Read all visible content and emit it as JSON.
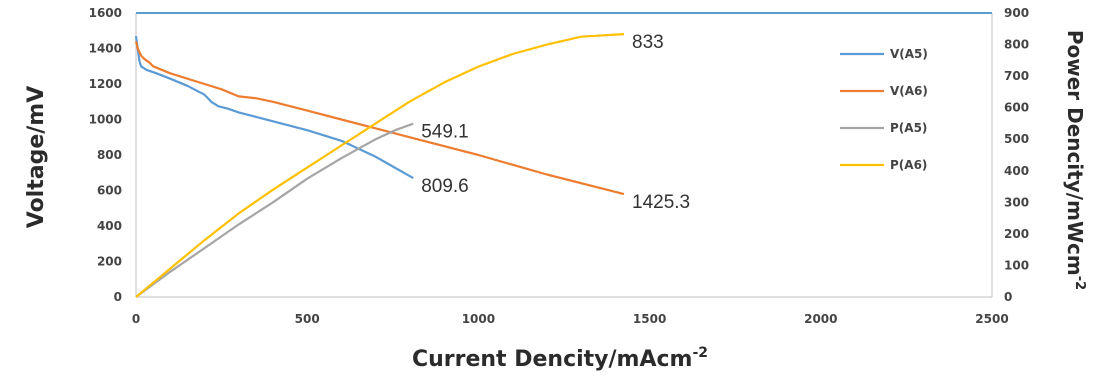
{
  "chart_data": {
    "type": "line",
    "title": "",
    "xlabel": "Current Dencity/mAcm",
    "xlabel_sup": "-2",
    "ylabel": "Voltage/mV",
    "y2label": "Power Dencity/mWcm",
    "y2label_sup": "-2",
    "xlim": [
      0,
      2500
    ],
    "ylim": [
      0,
      1600
    ],
    "y2lim": [
      0,
      900
    ],
    "x_ticks": [
      "0",
      "500",
      "1000",
      "1500",
      "2000",
      "2500"
    ],
    "y_ticks": [
      "0",
      "200",
      "400",
      "600",
      "800",
      "1000",
      "1200",
      "1400",
      "1600"
    ],
    "y2_ticks": [
      "0",
      "100",
      "200",
      "300",
      "400",
      "500",
      "600",
      "700",
      "800",
      "900"
    ],
    "grid": false,
    "legend_position": "right",
    "series": [
      {
        "name": "V(A5)",
        "axis": "left",
        "color": "#5b9bd5",
        "points": [
          [
            0,
            1470
          ],
          [
            5,
            1400
          ],
          [
            10,
            1330
          ],
          [
            15,
            1300
          ],
          [
            30,
            1280
          ],
          [
            60,
            1260
          ],
          [
            100,
            1230
          ],
          [
            150,
            1190
          ],
          [
            200,
            1140
          ],
          [
            220,
            1100
          ],
          [
            240,
            1075
          ],
          [
            270,
            1060
          ],
          [
            300,
            1040
          ],
          [
            400,
            990
          ],
          [
            500,
            940
          ],
          [
            600,
            880
          ],
          [
            700,
            790
          ],
          [
            809.6,
            670
          ]
        ]
      },
      {
        "name": "V(A6)",
        "axis": "left",
        "color": "#ed7d31",
        "points": [
          [
            0,
            1440
          ],
          [
            5,
            1400
          ],
          [
            15,
            1360
          ],
          [
            25,
            1340
          ],
          [
            40,
            1320
          ],
          [
            50,
            1300
          ],
          [
            100,
            1260
          ],
          [
            200,
            1200
          ],
          [
            250,
            1170
          ],
          [
            300,
            1130
          ],
          [
            350,
            1120
          ],
          [
            400,
            1100
          ],
          [
            500,
            1050
          ],
          [
            600,
            1000
          ],
          [
            800,
            900
          ],
          [
            1000,
            800
          ],
          [
            1200,
            690
          ],
          [
            1425.3,
            580
          ]
        ]
      },
      {
        "name": "P(A5)",
        "axis": "right",
        "color": "#a5a5a5",
        "points": [
          [
            0,
            0
          ],
          [
            50,
            40
          ],
          [
            100,
            80
          ],
          [
            200,
            155
          ],
          [
            300,
            230
          ],
          [
            400,
            300
          ],
          [
            500,
            375
          ],
          [
            600,
            440
          ],
          [
            700,
            500
          ],
          [
            760,
            530
          ],
          [
            809.6,
            549.1
          ]
        ]
      },
      {
        "name": "P(A6)",
        "axis": "right",
        "color": "#ffc000",
        "points": [
          [
            0,
            0
          ],
          [
            50,
            45
          ],
          [
            100,
            90
          ],
          [
            200,
            180
          ],
          [
            300,
            265
          ],
          [
            400,
            340
          ],
          [
            500,
            410
          ],
          [
            600,
            480
          ],
          [
            700,
            550
          ],
          [
            800,
            620
          ],
          [
            900,
            680
          ],
          [
            1000,
            730
          ],
          [
            1100,
            770
          ],
          [
            1200,
            800
          ],
          [
            1300,
            825
          ],
          [
            1425.3,
            833
          ]
        ]
      }
    ],
    "annotations": [
      {
        "text": "833",
        "x": 1425.3,
        "y": 833,
        "axis": "right"
      },
      {
        "text": "549.1",
        "x": 809.6,
        "y": 549.1,
        "axis": "right"
      },
      {
        "text": "809.6",
        "x": 809.6,
        "y": 670,
        "axis": "left"
      },
      {
        "text": "1425.3",
        "x": 1425.3,
        "y": 580,
        "axis": "left"
      }
    ],
    "top_line": {
      "y2": 900,
      "color": "#5b9bd5"
    }
  }
}
